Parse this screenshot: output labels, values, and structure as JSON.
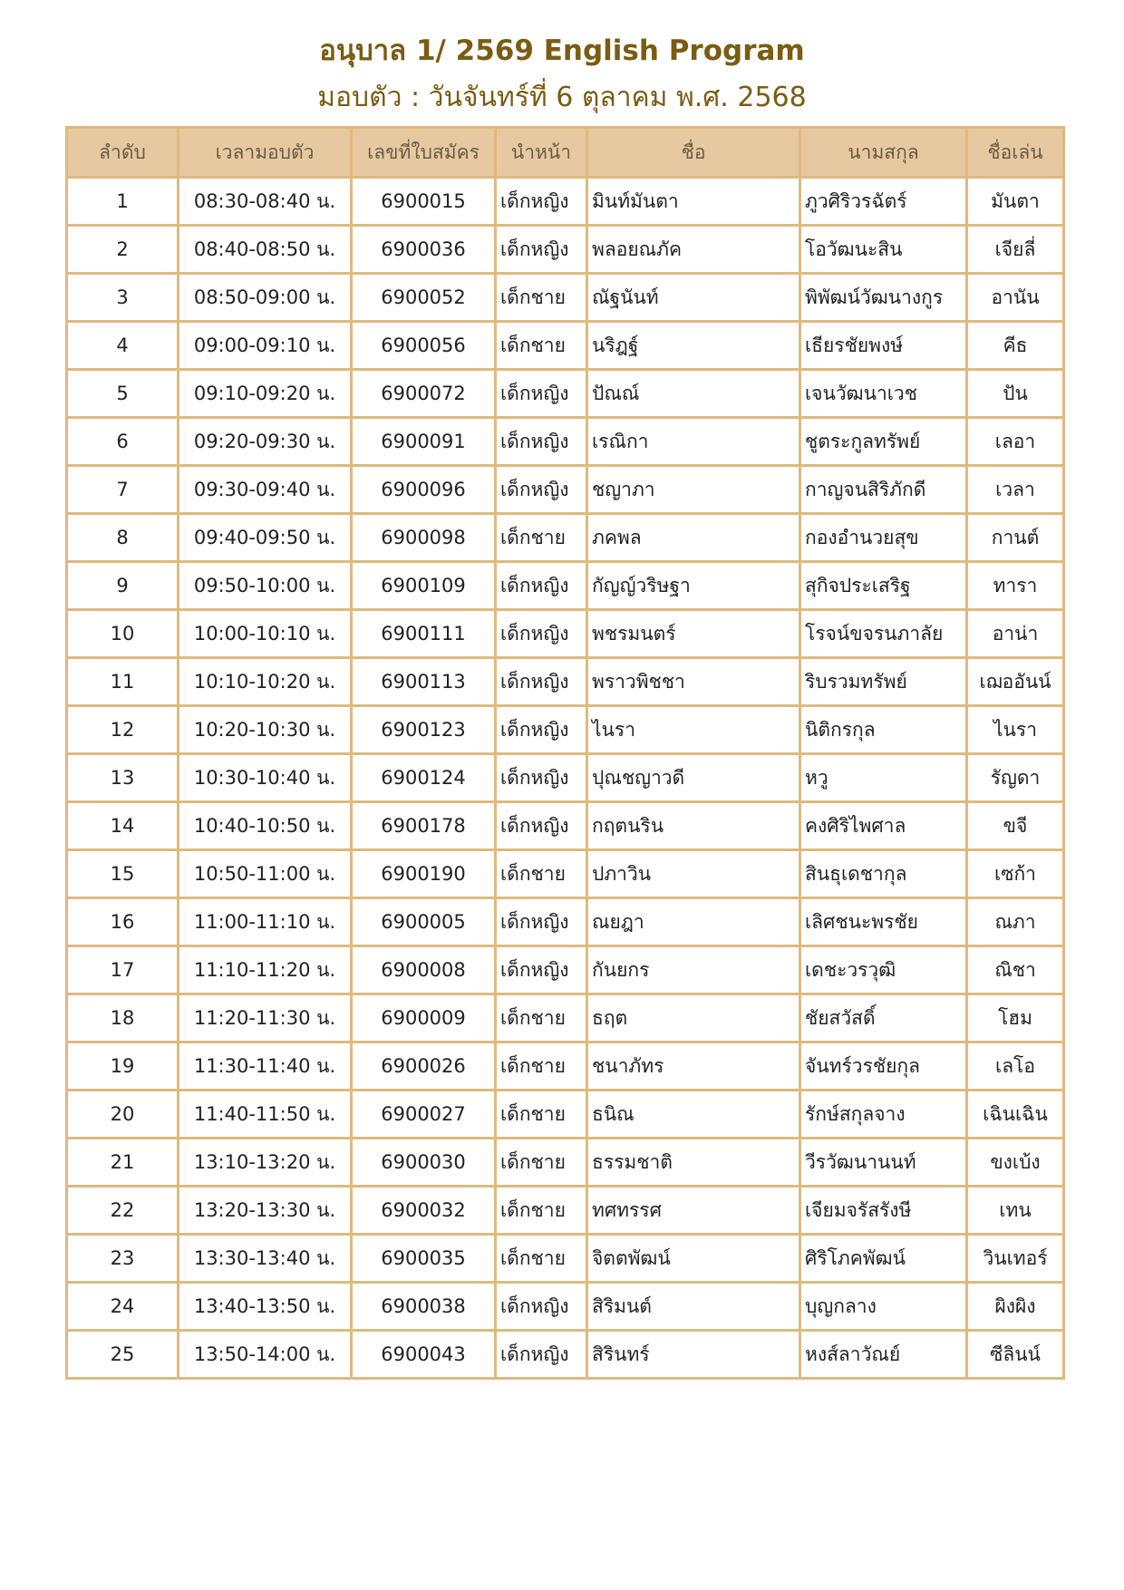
{
  "title": "อนุบาล 1/ 2569  English  Program",
  "subtitle": "มอบตัว : วันจันทร์ที่ 6 ตุลาคม พ.ศ. 2568",
  "colors": {
    "header_bg": "#e6c9a0",
    "border": "#dfb97f",
    "title": "#7a5c12"
  },
  "headers": [
    "ลำดับ",
    "เวลามอบตัว",
    "เลขที่ใบสมัคร",
    "นำหน้า",
    "ชื่อ",
    "นามสกุล",
    "ชื่อเล่น"
  ],
  "rows": [
    [
      "1",
      "08:30-08:40 น.",
      "6900015",
      "เด็กหญิง",
      "มินท์มันตา",
      "ภูวศิริวรฉัตร์",
      "มันตา"
    ],
    [
      "2",
      "08:40-08:50 น.",
      "6900036",
      "เด็กหญิง",
      "พลอยณภัค",
      "โอวัฒนะสิน",
      "เจียลี่"
    ],
    [
      "3",
      "08:50-09:00 น.",
      "6900052",
      "เด็กชาย",
      "ณัฐนันท์",
      "พิพัฒน์วัฒนางกูร",
      "อานัน"
    ],
    [
      "4",
      "09:00-09:10 น.",
      "6900056",
      "เด็กชาย",
      "นริฎฐ์",
      "เธียรชัยพงษ์",
      "คีธ"
    ],
    [
      "5",
      "09:10-09:20 น.",
      "6900072",
      "เด็กหญิง",
      "ปัณณ์",
      "เจนวัฒนาเวช",
      "ปัน"
    ],
    [
      "6",
      "09:20-09:30 น.",
      "6900091",
      "เด็กหญิง",
      "เรณิกา",
      "ชูตระกูลทรัพย์",
      "เลอา"
    ],
    [
      "7",
      "09:30-09:40 น.",
      "6900096",
      "เด็กหญิง",
      "ชญาภา",
      "กาญจนสิริภักดี",
      "เวลา"
    ],
    [
      "8",
      "09:40-09:50 น.",
      "6900098",
      "เด็กชาย",
      "ภคพล",
      "กองอำนวยสุข",
      "กานต์"
    ],
    [
      "9",
      "09:50-10:00 น.",
      "6900109",
      "เด็กหญิง",
      "กัญญ์วริษฐา",
      "สุกิจประเสริฐ",
      "ทารา"
    ],
    [
      "10",
      "10:00-10:10 น.",
      "6900111",
      "เด็กหญิง",
      "พชรมนตร์",
      "โรจน์ขจรนภาลัย",
      "อาน่า"
    ],
    [
      "11",
      "10:10-10:20 น.",
      "6900113",
      "เด็กหญิง",
      "พราวพิชชา",
      "ริบรวมทรัพย์",
      "เฌออันน์"
    ],
    [
      "12",
      "10:20-10:30 น.",
      "6900123",
      "เด็กหญิง",
      "ไนรา",
      "นิติกรกุล",
      "ไนรา"
    ],
    [
      "13",
      "10:30-10:40 น.",
      "6900124",
      "เด็กหญิง",
      "ปุณชญาวดี",
      "หวู",
      "รัญดา"
    ],
    [
      "14",
      "10:40-10:50 น.",
      "6900178",
      "เด็กหญิง",
      "กฤตนริน",
      "คงศิริไพศาล",
      "ขจี"
    ],
    [
      "15",
      "10:50-11:00 น.",
      "6900190",
      "เด็กชาย",
      "ปภาวิน",
      "สินธุเดชากุล",
      "เซก้า"
    ],
    [
      "16",
      "11:00-11:10 น.",
      "6900005",
      "เด็กหญิง",
      "ณยฎา",
      "เลิศชนะพรชัย",
      "ณภา"
    ],
    [
      "17",
      "11:10-11:20 น.",
      "6900008",
      "เด็กหญิง",
      "กันยกร",
      "เดชะวรวุฒิ",
      "ณิชา"
    ],
    [
      "18",
      "11:20-11:30 น.",
      "6900009",
      "เด็กชาย",
      "ธฤต",
      "ชัยสวัสดิ์",
      "โฮม"
    ],
    [
      "19",
      "11:30-11:40 น.",
      "6900026",
      "เด็กชาย",
      "ชนาภัทร",
      "จันทร์วรชัยกุล",
      "เลโอ"
    ],
    [
      "20",
      "11:40-11:50 น.",
      "6900027",
      "เด็กชาย",
      "ธนิณ",
      "รักษ์สกุลจาง",
      "เฉินเฉิน"
    ],
    [
      "21",
      "13:10-13:20 น.",
      "6900030",
      "เด็กชาย",
      "ธรรมชาติ",
      "วีรวัฒนานนท์",
      "ขงเบ้ง"
    ],
    [
      "22",
      "13:20-13:30 น.",
      "6900032",
      "เด็กชาย",
      "ทศทรรศ",
      "เจียมจรัสรังษี",
      "เทน"
    ],
    [
      "23",
      "13:30-13:40 น.",
      "6900035",
      "เด็กชาย",
      "จิตตพัฒน์",
      "ศิริโภคพัฒน์",
      "วินเทอร์"
    ],
    [
      "24",
      "13:40-13:50 น.",
      "6900038",
      "เด็กหญิง",
      "สิริมนต์",
      "บุญกลาง",
      "ผิงผิง"
    ],
    [
      "25",
      "13:50-14:00 น.",
      "6900043",
      "เด็กหญิง",
      "สิรินทร์",
      "หงส์ลาวัณย์",
      "ซีลินน์"
    ]
  ]
}
